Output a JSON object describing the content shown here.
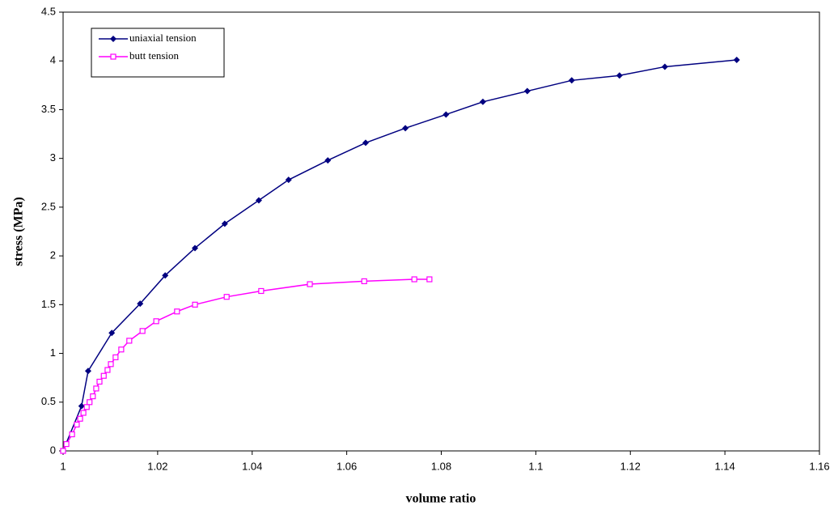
{
  "chart_data": {
    "type": "line",
    "x_label": "volume ratio",
    "y_label": "stress (MPa)",
    "xlim": [
      1,
      1.16
    ],
    "xticks": [
      1,
      1.02,
      1.04,
      1.06,
      1.08,
      1.1,
      1.12,
      1.14,
      1.16
    ],
    "ylim": [
      0,
      4.5
    ],
    "yticks": [
      0,
      0.5,
      1,
      1.5,
      2,
      2.5,
      3,
      3.5,
      4,
      4.5
    ],
    "grid": false,
    "legend": "top-left",
    "series": [
      {
        "name": "uniaxial tension",
        "color": "#000080",
        "marker": "diamond",
        "x": [
          1,
          1.0039,
          1.0053,
          1.0103,
          1.0163,
          1.0216,
          1.0279,
          1.0342,
          1.0414,
          1.0477,
          1.056,
          1.064,
          1.0724,
          1.081,
          1.0888,
          1.0982,
          1.1076,
          1.1177,
          1.1273,
          1.1425
        ],
        "values": [
          0,
          0.46,
          0.82,
          1.21,
          1.51,
          1.8,
          2.08,
          2.33,
          2.57,
          2.78,
          2.98,
          3.16,
          3.31,
          3.45,
          3.58,
          3.69,
          3.8,
          3.85,
          3.94,
          4.01
        ]
      },
      {
        "name": "butt tension",
        "color": "#ff00ff",
        "marker": "square",
        "x": [
          1,
          1.0007,
          1.0019,
          1.0029,
          1.0036,
          1.0043,
          1.005,
          1.0056,
          1.0063,
          1.007,
          1.0077,
          1.0086,
          1.0094,
          1.0101,
          1.0111,
          1.0123,
          1.014,
          1.0168,
          1.0197,
          1.0241,
          1.0279,
          1.0346,
          1.0419,
          1.0522,
          1.0637,
          1.0743,
          1.0775
        ],
        "values": [
          0,
          0.07,
          0.17,
          0.27,
          0.33,
          0.39,
          0.45,
          0.5,
          0.56,
          0.64,
          0.71,
          0.77,
          0.83,
          0.89,
          0.96,
          1.04,
          1.13,
          1.23,
          1.33,
          1.43,
          1.5,
          1.58,
          1.64,
          1.71,
          1.74,
          1.76,
          1.76
        ]
      }
    ]
  }
}
